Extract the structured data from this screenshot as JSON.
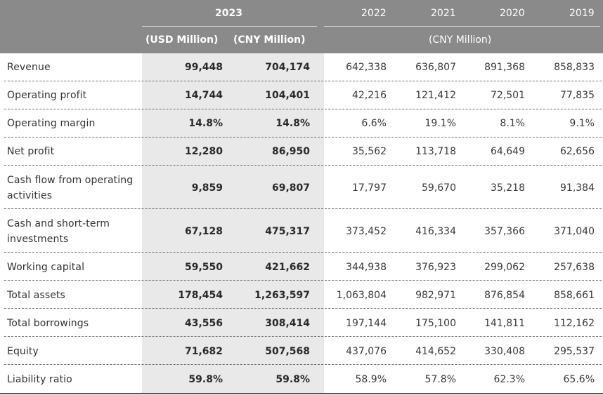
{
  "header": {
    "year_2023": "2023",
    "usd_label": "(USD Million)",
    "cny_label": "(CNY Million)",
    "years": [
      "2022",
      "2021",
      "2020",
      "2019"
    ],
    "history_unit": "(CNY Million)"
  },
  "rows": [
    {
      "label": "Revenue",
      "usd": "99,448",
      "cny": "704,174",
      "y2022": "642,338",
      "y2021": "636,807",
      "y2020": "891,368",
      "y2019": "858,833"
    },
    {
      "label": "Operating profit",
      "usd": "14,744",
      "cny": "104,401",
      "y2022": "42,216",
      "y2021": "121,412",
      "y2020": "72,501",
      "y2019": "77,835"
    },
    {
      "label": "Operating margin",
      "usd": "14.8%",
      "cny": "14.8%",
      "y2022": "6.6%",
      "y2021": "19.1%",
      "y2020": "8.1%",
      "y2019": "9.1%"
    },
    {
      "label": "Net profit",
      "usd": "12,280",
      "cny": "86,950",
      "y2022": "35,562",
      "y2021": "113,718",
      "y2020": "64,649",
      "y2019": "62,656"
    },
    {
      "label": "Cash flow from operating activities",
      "usd": "9,859",
      "cny": "69,807",
      "y2022": "17,797",
      "y2021": "59,670",
      "y2020": "35,218",
      "y2019": "91,384"
    },
    {
      "label": "Cash and short-term investments",
      "usd": "67,128",
      "cny": "475,317",
      "y2022": "373,452",
      "y2021": "416,334",
      "y2020": "357,366",
      "y2019": "371,040"
    },
    {
      "label": "Working capital",
      "usd": "59,550",
      "cny": "421,662",
      "y2022": "344,938",
      "y2021": "376,923",
      "y2020": "299,062",
      "y2019": "257,638"
    },
    {
      "label": "Total assets",
      "usd": "178,454",
      "cny": "1,263,597",
      "y2022": "1,063,804",
      "y2021": "982,971",
      "y2020": "876,854",
      "y2019": "858,661"
    },
    {
      "label": "Total borrowings",
      "usd": "43,556",
      "cny": "308,414",
      "y2022": "197,144",
      "y2021": "175,100",
      "y2020": "141,811",
      "y2019": "112,162"
    },
    {
      "label": "Equity",
      "usd": "71,682",
      "cny": "507,568",
      "y2022": "437,076",
      "y2021": "414,652",
      "y2020": "330,408",
      "y2019": "295,537"
    },
    {
      "label": "Liability ratio",
      "usd": "59.8%",
      "cny": "59.8%",
      "y2022": "58.9%",
      "y2021": "57.8%",
      "y2020": "62.3%",
      "y2019": "65.6%"
    }
  ]
}
